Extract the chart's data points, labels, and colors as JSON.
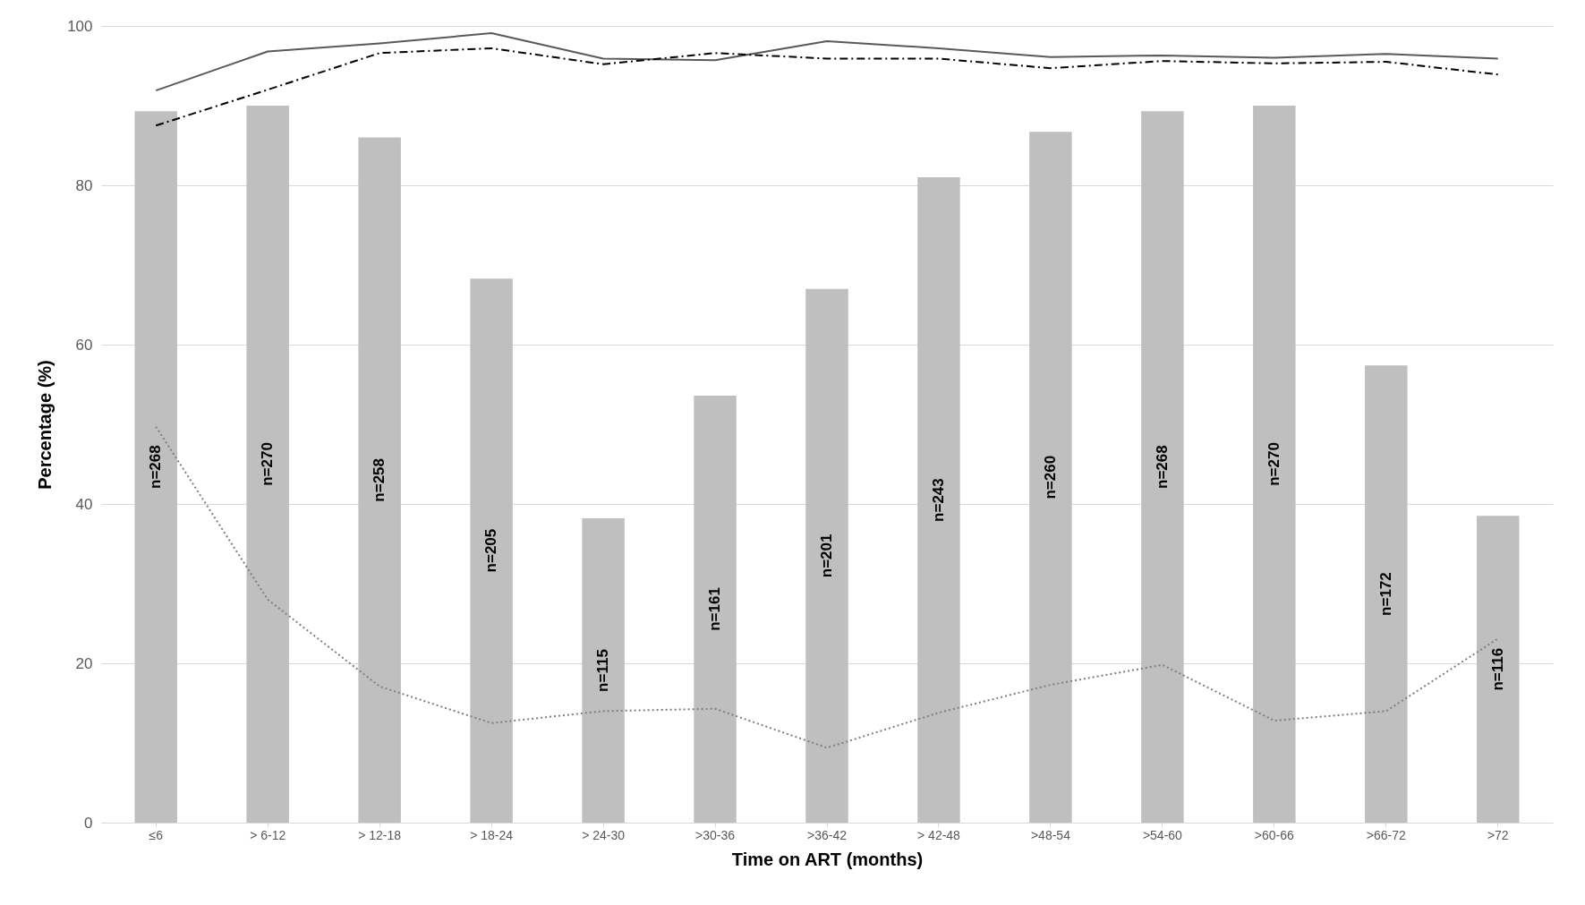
{
  "chart_data": {
    "type": "bar",
    "xlabel": "Time on ART (months)",
    "ylabel": "Percentage (%)",
    "categories": [
      "≤6",
      "> 6-12",
      "> 12-18",
      "> 18-24",
      "> 24-30",
      ">30-36",
      ">36-42",
      "> 42-48",
      ">48-54",
      ">54-60",
      ">60-66",
      ">66-72",
      ">72"
    ],
    "series": [
      {
        "color": "#bfbfbf",
        "values": [
          89.3,
          90.0,
          86.0,
          68.3,
          38.2,
          53.6,
          67.0,
          81.0,
          86.7,
          89.3,
          90.0,
          57.4,
          38.5
        ]
      },
      {
        "type": "line",
        "color": "#595959",
        "line_style": "solid",
        "values": [
          91.9,
          96.8,
          97.8,
          99.1,
          95.9,
          95.7,
          98.1,
          97.2,
          96.1,
          96.3,
          96.0,
          96.5,
          95.9
        ]
      },
      {
        "type": "line",
        "color": "#000000",
        "line_style": "dashed",
        "values": [
          87.5,
          92.0,
          96.6,
          97.2,
          95.2,
          96.6,
          95.9,
          95.9,
          94.7,
          95.6,
          95.3,
          95.5,
          93.9
        ]
      },
      {
        "type": "line",
        "color": "#7f7f7f",
        "line_style": "dotted",
        "values": [
          49.7,
          28.0,
          17.1,
          12.5,
          14.0,
          14.3,
          9.4,
          13.8,
          17.3,
          19.8,
          12.8,
          14.0,
          23.1
        ]
      }
    ],
    "annotations": [
      "n=268",
      "n=270",
      "n=258",
      "n=205",
      "n=115",
      "n=161",
      "n=201",
      "n=243",
      "n=260",
      "n=268",
      "n=270",
      "n=172",
      "n=116"
    ],
    "ylim": [
      0,
      100
    ],
    "yticks": [
      0,
      20,
      40,
      60,
      80,
      100
    ],
    "grid": "y",
    "marker": "none"
  }
}
